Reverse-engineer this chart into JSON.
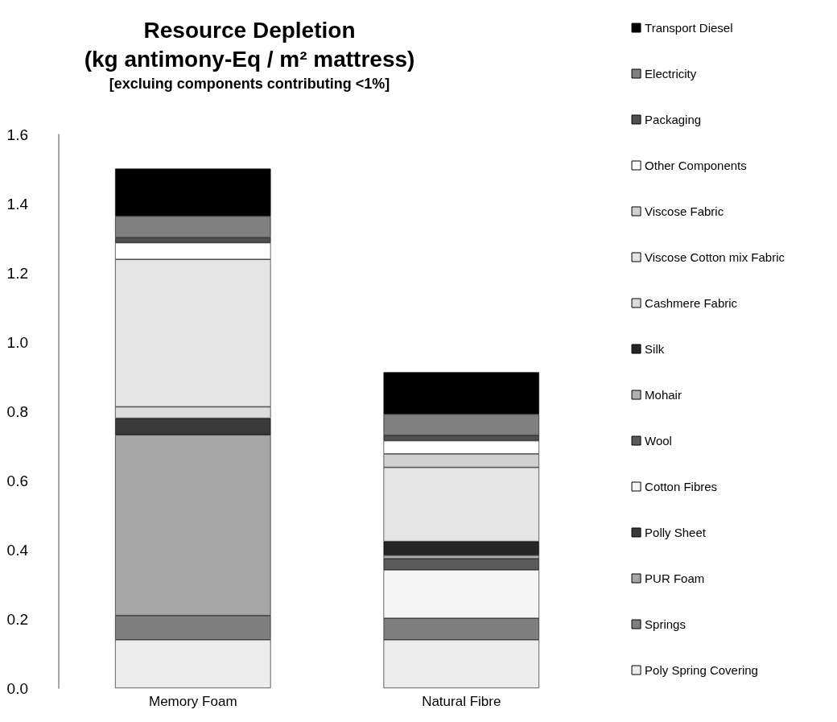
{
  "chart_data": {
    "type": "bar",
    "stacked": true,
    "title": "Resource Depletion\n(kg antimony-Eq / m² mattress)",
    "subtitle": "[excluing components contributing <1%]",
    "categories": [
      "Memory Foam",
      "Natural Fibre"
    ],
    "ylim": [
      0,
      1.6
    ],
    "yticks": [
      {
        "value": 0,
        "label": "0.0"
      },
      {
        "value": 0.2,
        "label": "0.2"
      },
      {
        "value": 0.4,
        "label": "0.4"
      },
      {
        "value": 0.6,
        "label": "0.6"
      },
      {
        "value": 0.8,
        "label": "0.8"
      },
      {
        "value": 1.0,
        "label": "1.0"
      },
      {
        "value": 1.2,
        "label": "1.2"
      },
      {
        "value": 1.4,
        "label": "1.4"
      },
      {
        "value": 1.6,
        "label": "1.6"
      }
    ],
    "grid": false,
    "legend": "right",
    "series": [
      {
        "name": "Poly Spring Covering",
        "color": "#ececec",
        "values": [
          0.14,
          0.14
        ]
      },
      {
        "name": "Springs",
        "color": "#7f7f7f",
        "values": [
          0.07,
          0.062
        ]
      },
      {
        "name": "PUR Foam",
        "color": "#a6a6a6",
        "values": [
          0.522,
          null
        ]
      },
      {
        "name": "Polly Sheet",
        "color": "#3a3a3a",
        "values": [
          0.048,
          null
        ]
      },
      {
        "name": "Cotton Fibres",
        "color": "#f5f5f5",
        "values": [
          null,
          0.14
        ]
      },
      {
        "name": "Wool",
        "color": "#5a5a5a",
        "values": [
          null,
          0.032
        ]
      },
      {
        "name": "Mohair",
        "color": "#b0b0b0",
        "values": [
          null,
          0.01
        ]
      },
      {
        "name": "Silk",
        "color": "#262626",
        "values": [
          null,
          0.04
        ]
      },
      {
        "name": "Cashmere Fabric",
        "color": "#dcdcdc",
        "values": [
          0.033,
          null
        ]
      },
      {
        "name": "Viscose Cotton mix Fabric",
        "color": "#e4e4e4",
        "values": [
          0.426,
          0.214
        ]
      },
      {
        "name": "Viscose Fabric",
        "color": "#d0d0d0",
        "values": [
          null,
          0.039
        ]
      },
      {
        "name": "Other Components",
        "color": "#ffffff",
        "values": [
          0.048,
          0.038
        ]
      },
      {
        "name": "Packaging",
        "color": "#505050",
        "values": [
          0.015,
          0.016
        ]
      },
      {
        "name": "Electricity",
        "color": "#808080",
        "values": [
          0.062,
          0.061
        ]
      },
      {
        "name": "Transport Diesel",
        "color": "#000000",
        "values": [
          0.137,
          0.121
        ]
      }
    ]
  }
}
